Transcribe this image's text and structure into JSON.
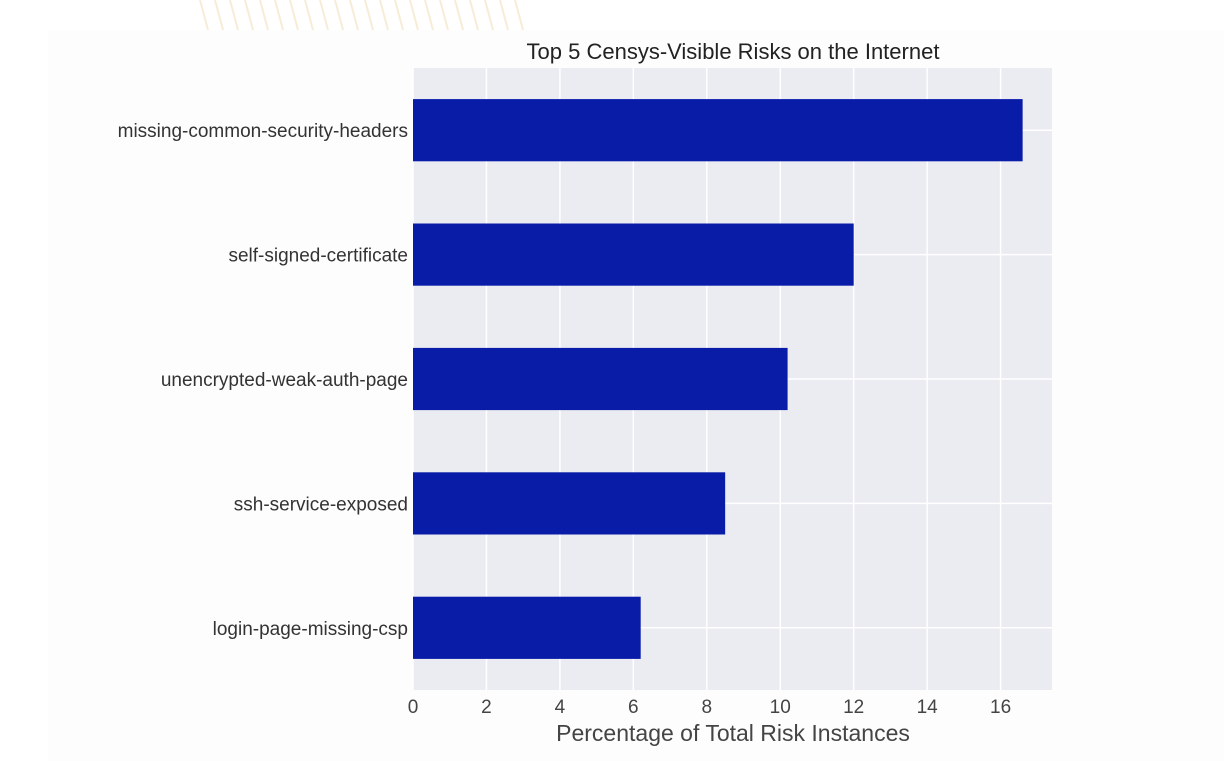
{
  "chart_data": {
    "type": "bar",
    "orientation": "horizontal",
    "title": "Top 5 Censys-Visible Risks on the Internet",
    "xlabel": "Percentage of Total Risk Instances",
    "ylabel": "",
    "categories": [
      "missing-common-security-headers",
      "self-signed-certificate",
      "unencrypted-weak-auth-page",
      "ssh-service-exposed",
      "login-page-missing-csp"
    ],
    "values": [
      16.6,
      12.0,
      10.2,
      8.5,
      6.2
    ],
    "xlim": [
      0,
      17.4
    ],
    "xticks": [
      "0",
      "2",
      "4",
      "6",
      "8",
      "10",
      "12",
      "14",
      "16"
    ],
    "grid": true,
    "bar_color": "#081ca8",
    "plot_background": "#ebebf2"
  }
}
